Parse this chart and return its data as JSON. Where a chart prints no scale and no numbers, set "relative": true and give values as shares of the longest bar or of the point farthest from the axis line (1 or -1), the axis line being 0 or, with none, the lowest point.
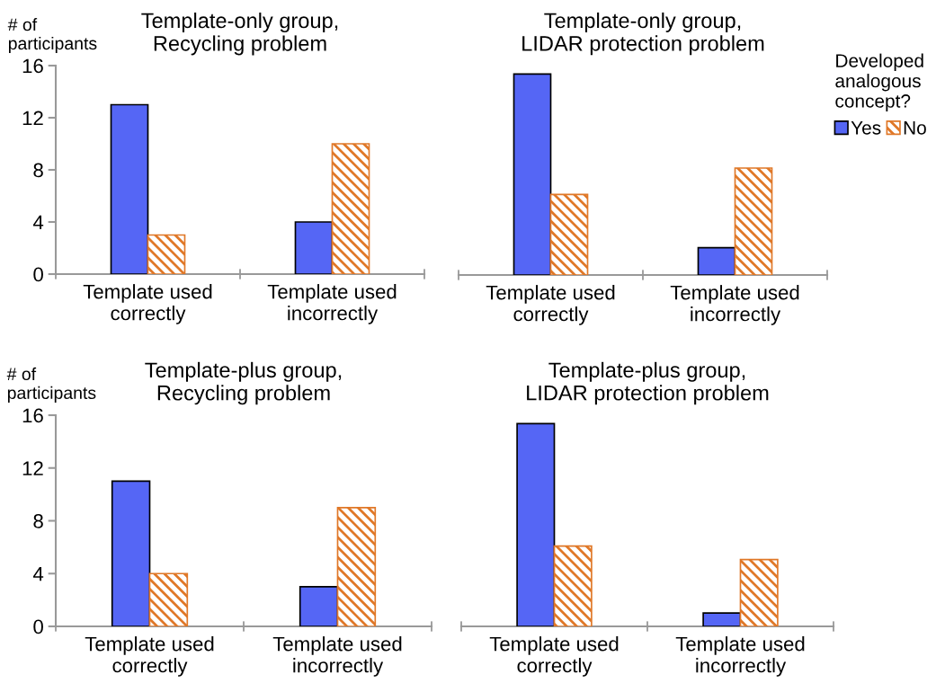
{
  "chart_data": [
    {
      "type": "bar",
      "title": "Template-only group,\nRecycling problem",
      "ylabel": "# of\nparticipants",
      "categories": [
        "Template used\ncorrectly",
        "Template used\nincorrectly"
      ],
      "series": [
        {
          "color": "#5566f5",
          "values": [
            13,
            4
          ]
        },
        {
          "color": "#e07828",
          "values": [
            3,
            10
          ]
        }
      ],
      "ylim": [
        0,
        16
      ],
      "yticks": [
        0,
        4,
        8,
        12,
        16
      ],
      "grid": false,
      "legend": false
    },
    {
      "type": "bar",
      "title": "Template-only group,\nLIDAR protection problem",
      "legend_title": "Developed\nanalogous\nconcept?",
      "categories": [
        "Template used\ncorrectly",
        "Template used\nincorrectly"
      ],
      "relative": true,
      "tick_labels": "x",
      "series": [
        {
          "name": "Yes",
          "color": "#5566f5",
          "values": [
            1,
            0.136
          ]
        },
        {
          "name": "No",
          "color": "#e07828",
          "values": [
            0.401,
            0.532
          ]
        }
      ],
      "grid": false,
      "legend": "right"
    },
    {
      "type": "bar",
      "title": "Template-plus group,\nRecycling problem",
      "ylabel": "# of\nparticipants",
      "categories": [
        "Template used\ncorrectly",
        "Template used\nincorrectly"
      ],
      "series": [
        {
          "color": "#5566f5",
          "values": [
            11,
            3
          ]
        },
        {
          "color": "#e07828",
          "values": [
            4,
            9
          ]
        }
      ],
      "ylim": [
        0,
        16
      ],
      "yticks": [
        0,
        4,
        8,
        12,
        16
      ],
      "grid": false,
      "legend": false
    },
    {
      "type": "bar",
      "title": "Template-plus group,\nLIDAR protection problem",
      "categories": [
        "Template used\ncorrectly",
        "Template used\nincorrectly"
      ],
      "relative": true,
      "tick_labels": "x",
      "series": [
        {
          "color": "#5566f5",
          "values": [
            1,
            0.066
          ]
        },
        {
          "color": "#e07828",
          "values": [
            0.396,
            0.33
          ]
        }
      ],
      "grid": false,
      "legend": false
    }
  ]
}
